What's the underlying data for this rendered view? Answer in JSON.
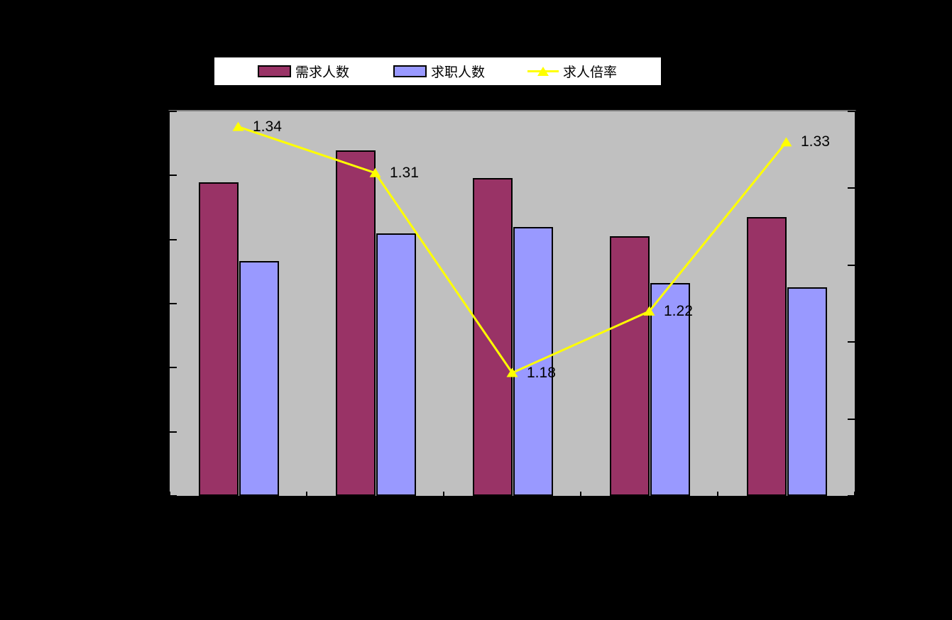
{
  "colors": {
    "background": "#000000",
    "plot_background": "#C0C0C0",
    "plot_top_border": "#808080",
    "axis": "#000000",
    "legend_background": "#FFFFFF",
    "demand_bar": "#993366",
    "seeker_bar": "#9999FF",
    "ratio_line": "#FFFF00",
    "label_text": "#000000"
  },
  "legend": {
    "position": "top",
    "items": [
      {
        "label": "需求人数",
        "swatch": "bar",
        "color": "#993366"
      },
      {
        "label": "求职人数",
        "swatch": "bar",
        "color": "#9999FF"
      },
      {
        "label": "求人倍率",
        "swatch": "line-triangle",
        "color": "#FFFF00"
      }
    ]
  },
  "chart_data": {
    "type": "bar+line",
    "title": "",
    "categories": [
      "",
      "",
      "",
      "",
      ""
    ],
    "series": [
      {
        "name": "需求人数",
        "type": "bar",
        "color": "#993366",
        "axis": "left",
        "values_fraction_of_left_axis": [
          0.815,
          0.899,
          0.826,
          0.675,
          0.725
        ]
      },
      {
        "name": "求职人数",
        "type": "bar",
        "color": "#9999FF",
        "axis": "left",
        "values_fraction_of_left_axis": [
          0.611,
          0.683,
          0.699,
          0.554,
          0.543
        ]
      },
      {
        "name": "求人倍率",
        "type": "line",
        "marker": "triangle",
        "color": "#FFFF00",
        "axis": "right",
        "values": [
          1.34,
          1.31,
          1.18,
          1.22,
          1.33
        ],
        "data_labels": [
          "1.34",
          "1.31",
          "1.18",
          "1.22",
          "1.33"
        ]
      }
    ],
    "left_axis": {
      "tick_count": 7,
      "labels_visible": false
    },
    "right_axis": {
      "min": 1.1,
      "max": 1.35,
      "tick_count": 6,
      "labels_visible": false
    },
    "x_axis": {
      "boundary_tick_count": 6,
      "labels_visible": false
    },
    "gridlines": false,
    "legend_position": "top",
    "plot_area_background": "#C0C0C0"
  }
}
